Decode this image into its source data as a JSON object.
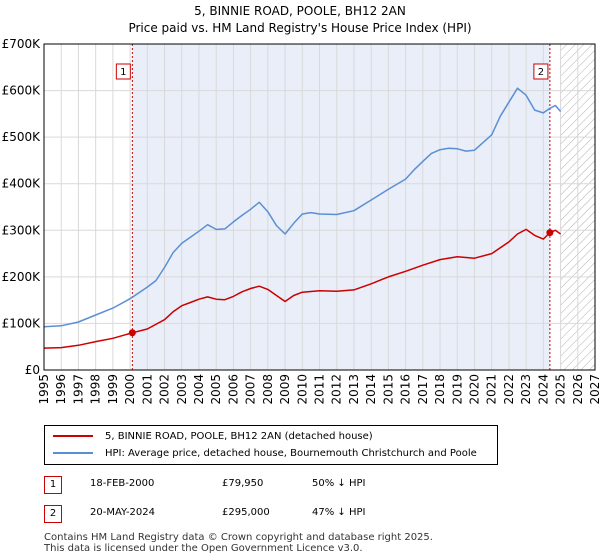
{
  "header": {
    "title": "5, BINNIE ROAD, POOLE, BH12 2AN",
    "subtitle": "Price paid vs. HM Land Registry's House Price Index (HPI)"
  },
  "chart_data": {
    "type": "line",
    "title": "5, BINNIE ROAD, POOLE, BH12 2AN",
    "subtitle": "Price paid vs. HM Land Registry's House Price Index (HPI)",
    "xlabel": "",
    "ylabel": "",
    "xlim": [
      1995,
      2027
    ],
    "ylim": [
      0,
      700000
    ],
    "x_ticks": [
      "1995",
      "1996",
      "1997",
      "1998",
      "1999",
      "2000",
      "2001",
      "2002",
      "2003",
      "2004",
      "2005",
      "2006",
      "2007",
      "2008",
      "2009",
      "2010",
      "2011",
      "2012",
      "2013",
      "2014",
      "2015",
      "2016",
      "2017",
      "2018",
      "2019",
      "2020",
      "2021",
      "2022",
      "2023",
      "2024",
      "2025",
      "2026",
      "2027"
    ],
    "y_ticks": [
      {
        "value": 0,
        "label": "£0"
      },
      {
        "value": 100000,
        "label": "£100K"
      },
      {
        "value": 200000,
        "label": "£200K"
      },
      {
        "value": 300000,
        "label": "£300K"
      },
      {
        "value": 400000,
        "label": "£400K"
      },
      {
        "value": 500000,
        "label": "£500K"
      },
      {
        "value": 600000,
        "label": "£600K"
      },
      {
        "value": 700000,
        "label": "£700K"
      }
    ],
    "grid": true,
    "highlight_region": [
      2000.13,
      2024.38
    ],
    "future_hatch_from": 2025.0,
    "series": [
      {
        "name": "5, BINNIE ROAD, POOLE, BH12 2AN (detached house)",
        "color": "#cc0000",
        "x": [
          1995.0,
          1996.0,
          1997.0,
          1998.0,
          1999.0,
          2000.13,
          2001.0,
          2002.0,
          2002.5,
          2003.0,
          2003.5,
          2004.0,
          2004.5,
          2005.0,
          2005.5,
          2006.0,
          2006.5,
          2007.0,
          2007.5,
          2008.0,
          2008.5,
          2009.0,
          2009.5,
          2010.0,
          2011.0,
          2012.0,
          2013.0,
          2014.0,
          2015.0,
          2016.0,
          2017.0,
          2018.0,
          2019.0,
          2020.0,
          2021.0,
          2022.0,
          2022.5,
          2023.0,
          2023.5,
          2024.0,
          2024.38,
          2024.7,
          2025.0
        ],
        "y": [
          47000,
          48000,
          53000,
          61000,
          68000,
          79950,
          88000,
          108000,
          125000,
          138000,
          145000,
          152000,
          157000,
          152000,
          151000,
          158000,
          168000,
          175000,
          180000,
          173000,
          160000,
          147000,
          160000,
          167000,
          170000,
          169000,
          172000,
          185000,
          200000,
          212000,
          225000,
          237000,
          243000,
          240000,
          250000,
          275000,
          292000,
          302000,
          289000,
          281000,
          295000,
          300000,
          292000
        ]
      },
      {
        "name": "HPI: Average price, detached house, Bournemouth Christchurch and Poole",
        "color": "#5b8fd4",
        "x": [
          1995.0,
          1996.0,
          1997.0,
          1998.0,
          1999.0,
          2000.0,
          2001.0,
          2001.5,
          2002.0,
          2002.5,
          2003.0,
          2003.5,
          2004.0,
          2004.5,
          2005.0,
          2005.5,
          2006.0,
          2006.5,
          2007.0,
          2007.5,
          2008.0,
          2008.5,
          2009.0,
          2009.5,
          2010.0,
          2010.5,
          2011.0,
          2012.0,
          2013.0,
          2014.0,
          2015.0,
          2016.0,
          2016.5,
          2017.0,
          2017.5,
          2018.0,
          2018.5,
          2019.0,
          2019.5,
          2020.0,
          2021.0,
          2021.5,
          2022.0,
          2022.5,
          2023.0,
          2023.5,
          2024.0,
          2024.38,
          2024.7,
          2025.0
        ],
        "y": [
          93000,
          95000,
          103000,
          118000,
          133000,
          153000,
          178000,
          192000,
          220000,
          252000,
          272000,
          285000,
          298000,
          312000,
          302000,
          303000,
          318000,
          332000,
          345000,
          360000,
          340000,
          310000,
          292000,
          315000,
          335000,
          338000,
          335000,
          334000,
          342000,
          365000,
          388000,
          410000,
          430000,
          448000,
          465000,
          473000,
          476000,
          475000,
          470000,
          472000,
          505000,
          545000,
          575000,
          605000,
          590000,
          558000,
          552000,
          562000,
          568000,
          555000
        ]
      }
    ],
    "sales": [
      {
        "num": "1",
        "x": 2000.13,
        "y": 79950
      },
      {
        "num": "2",
        "x": 2024.38,
        "y": 295000
      }
    ]
  },
  "legend": {
    "property_label": "5, BINNIE ROAD, POOLE, BH12 2AN (detached house)",
    "hpi_label": "HPI: Average price, detached house, Bournemouth Christchurch and Poole"
  },
  "sales_table": [
    {
      "num": "1",
      "date": "18-FEB-2000",
      "price": "£79,950",
      "hpi_rel": "50% ↓ HPI"
    },
    {
      "num": "2",
      "date": "20-MAY-2024",
      "price": "£295,000",
      "hpi_rel": "47% ↓ HPI"
    }
  ],
  "footer": {
    "line1": "Contains HM Land Registry data © Crown copyright and database right 2025.",
    "line2": "This data is licensed under the Open Government Licence v3.0."
  },
  "colors": {
    "property": "#cc0000",
    "hpi": "#5b8fd4",
    "highlight": "#e9eef9",
    "grid": "#d9d9d9",
    "marker_border": "#cc0000"
  }
}
